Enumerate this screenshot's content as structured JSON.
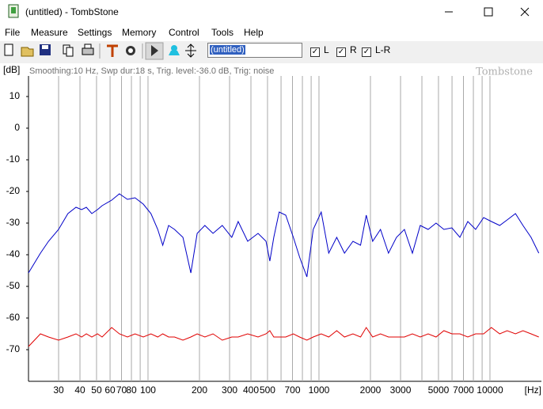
{
  "window": {
    "title": "(untitled) - TombStone"
  },
  "menu": [
    "File",
    "Measure",
    "Settings",
    "Memory",
    "Control",
    "Tools",
    "Help"
  ],
  "toolbar": {
    "name_field": "(untitled)",
    "channels": [
      "L",
      "R",
      "L-R"
    ]
  },
  "chart_data": {
    "type": "line",
    "y_label": "[dB]",
    "x_label": "[Hz]",
    "annotation": "Smoothing:10 Hz, Swp dur:18 s, Trig. level:-36.0 dB, Trig: noise",
    "watermark": "Tombstone",
    "x": [
      20,
      23.5,
      26.2,
      30,
      34,
      37.9,
      40.9,
      43.6,
      46.9,
      50.6,
      53.9,
      61.3,
      68,
      75.8,
      84,
      93.8,
      104,
      114,
      122,
      132,
      143,
      160,
      178,
      194,
      215,
      240,
      272,
      309,
      337,
      383,
      440,
      490,
      516,
      544,
      585,
      639,
      708,
      770,
      850,
      925,
      1030,
      1140,
      1270,
      1410,
      1580,
      1750,
      1890,
      2060,
      2290,
      2550,
      2840,
      3160,
      3520,
      3910,
      4350,
      4840,
      5380,
      5990,
      6670,
      7420,
      8250,
      9180,
      10200,
      11400,
      12600,
      14100,
      15600,
      17400,
      19300
    ],
    "series": [
      {
        "color": "#0000c8",
        "values": [
          -45.75,
          -39.5,
          -35.75,
          -32,
          -27,
          -25,
          -25.75,
          -25,
          -27,
          -25.75,
          -24.5,
          -22.75,
          -20.75,
          -22.5,
          -22,
          -24,
          -27,
          -32,
          -37,
          -30.75,
          -32,
          -34.5,
          -45.75,
          -33.25,
          -30.75,
          -33.25,
          -30.75,
          -34.5,
          -29.5,
          -35.75,
          -33.25,
          -35.75,
          -42,
          -34.5,
          -26.5,
          -27.5,
          -34.5,
          -40.75,
          -47,
          -32,
          -26.5,
          -39.5,
          -34.5,
          -39.5,
          -35.75,
          -37,
          -27.5,
          -35.75,
          -32,
          -39.5,
          -34.5,
          -32,
          -39.5,
          -30.75,
          -32,
          -30,
          -32,
          -31.5,
          -34.5,
          -29.5,
          -32,
          -28.25,
          -29.5,
          -30.75,
          -29,
          -27,
          -30.75,
          -34.5,
          -39.5
        ]
      },
      {
        "color": "#e00000",
        "values": [
          -69,
          -65,
          -66,
          -67,
          -66,
          -65,
          -66,
          -65,
          -66,
          -65,
          -66,
          -63,
          -65,
          -66,
          -65,
          -66,
          -65,
          -66,
          -65,
          -66,
          -66,
          -67,
          -66,
          -65,
          -66,
          -65,
          -67,
          -66,
          -66,
          -65,
          -66,
          -65,
          -64,
          -66,
          -66,
          -66,
          -65,
          -66,
          -67,
          -66,
          -65,
          -66,
          -64,
          -66,
          -65,
          -66,
          -63,
          -66,
          -65,
          -66,
          -66,
          -66,
          -65,
          -66,
          -65,
          -66,
          -64,
          -65,
          -65,
          -66,
          -65,
          -65,
          -63,
          -65,
          -64,
          -65,
          -64,
          -65,
          -66
        ]
      }
    ],
    "xlim": [
      20,
      20000
    ],
    "ylim": [
      -80,
      16.5
    ],
    "xticks": [
      30,
      40,
      50,
      60,
      70,
      80,
      100,
      200,
      300,
      400,
      500,
      700,
      1000,
      2000,
      3000,
      5000,
      7000,
      10000
    ],
    "minor_xticks": [
      90,
      600,
      800,
      900,
      4000,
      6000,
      8000,
      9000
    ],
    "yticks": [
      10,
      0,
      -10,
      -20,
      -30,
      -40,
      -50,
      -60,
      -70
    ],
    "log_x": true,
    "grid": true
  }
}
